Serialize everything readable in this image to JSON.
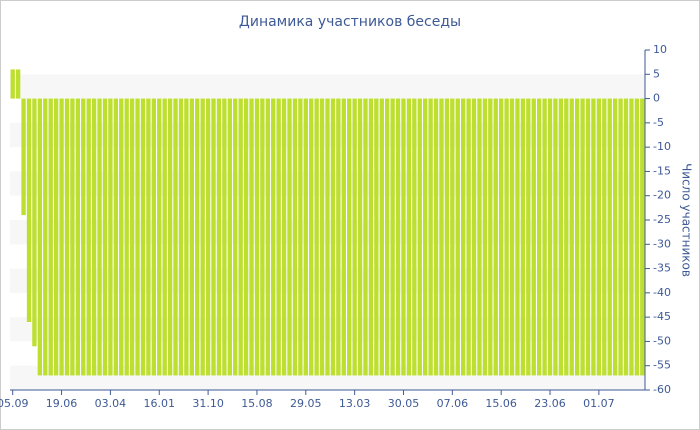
{
  "chart_data": {
    "type": "bar",
    "title": "Динамика участников беседы",
    "y_label": "Число участников",
    "categories": [
      "05.09",
      null,
      null,
      null,
      null,
      null,
      null,
      null,
      null,
      "19.06",
      null,
      null,
      null,
      null,
      null,
      null,
      null,
      null,
      "03.04",
      null,
      null,
      null,
      null,
      null,
      null,
      null,
      null,
      "16.01",
      null,
      null,
      null,
      null,
      null,
      null,
      null,
      null,
      "31.10",
      null,
      null,
      null,
      null,
      null,
      null,
      null,
      null,
      "15.08",
      null,
      null,
      null,
      null,
      null,
      null,
      null,
      null,
      "29.05",
      null,
      null,
      null,
      null,
      null,
      null,
      null,
      null,
      "13.03",
      null,
      null,
      null,
      null,
      null,
      null,
      null,
      null,
      "30.05",
      null,
      null,
      null,
      null,
      null,
      null,
      null,
      null,
      "07.06",
      null,
      null,
      null,
      null,
      null,
      null,
      null,
      null,
      "15.06",
      null,
      null,
      null,
      null,
      null,
      null,
      null,
      null,
      "23.06",
      null,
      null,
      null,
      null,
      null,
      null,
      null,
      null,
      "01.07",
      null,
      null,
      null,
      null,
      null,
      null,
      null,
      null
    ],
    "values": [
      6,
      6,
      -24,
      -46,
      -51,
      -57,
      -57,
      -57,
      -57,
      -57,
      -57,
      -57,
      -57,
      -57,
      -57,
      -57,
      -57,
      -57,
      -57,
      -57,
      -57,
      -57,
      -57,
      -57,
      -57,
      -57,
      -57,
      -57,
      -57,
      -57,
      -57,
      -57,
      -57,
      -57,
      -57,
      -57,
      -57,
      -57,
      -57,
      -57,
      -57,
      -57,
      -57,
      -57,
      -57,
      -57,
      -57,
      -57,
      -57,
      -57,
      -57,
      -57,
      -57,
      -57,
      -57,
      -57,
      -57,
      -57,
      -57,
      -57,
      -57,
      -57,
      -57,
      -57,
      -57,
      -57,
      -57,
      -57,
      -57,
      -57,
      -57,
      -57,
      -57,
      -57,
      -57,
      -57,
      -57,
      -57,
      -57,
      -57,
      -57,
      -57,
      -57,
      -57,
      -57,
      -57,
      -57,
      -57,
      -57,
      -57,
      -57,
      -57,
      -57,
      -57,
      -57,
      -57,
      -57,
      -57,
      -57,
      -57,
      -57,
      -57,
      -57,
      -57,
      -57,
      -57,
      -57,
      -57,
      -57,
      -57,
      -57,
      -57,
      -57,
      -57,
      -57,
      -57,
      -57
    ],
    "color": "#bddf2f",
    "ylim": [
      -60,
      10
    ],
    "yticks": [
      -60,
      -55,
      -50,
      -45,
      -40,
      -35,
      -30,
      -25,
      -20,
      -15,
      -10,
      -5,
      0,
      5,
      10
    ],
    "grid": true
  }
}
